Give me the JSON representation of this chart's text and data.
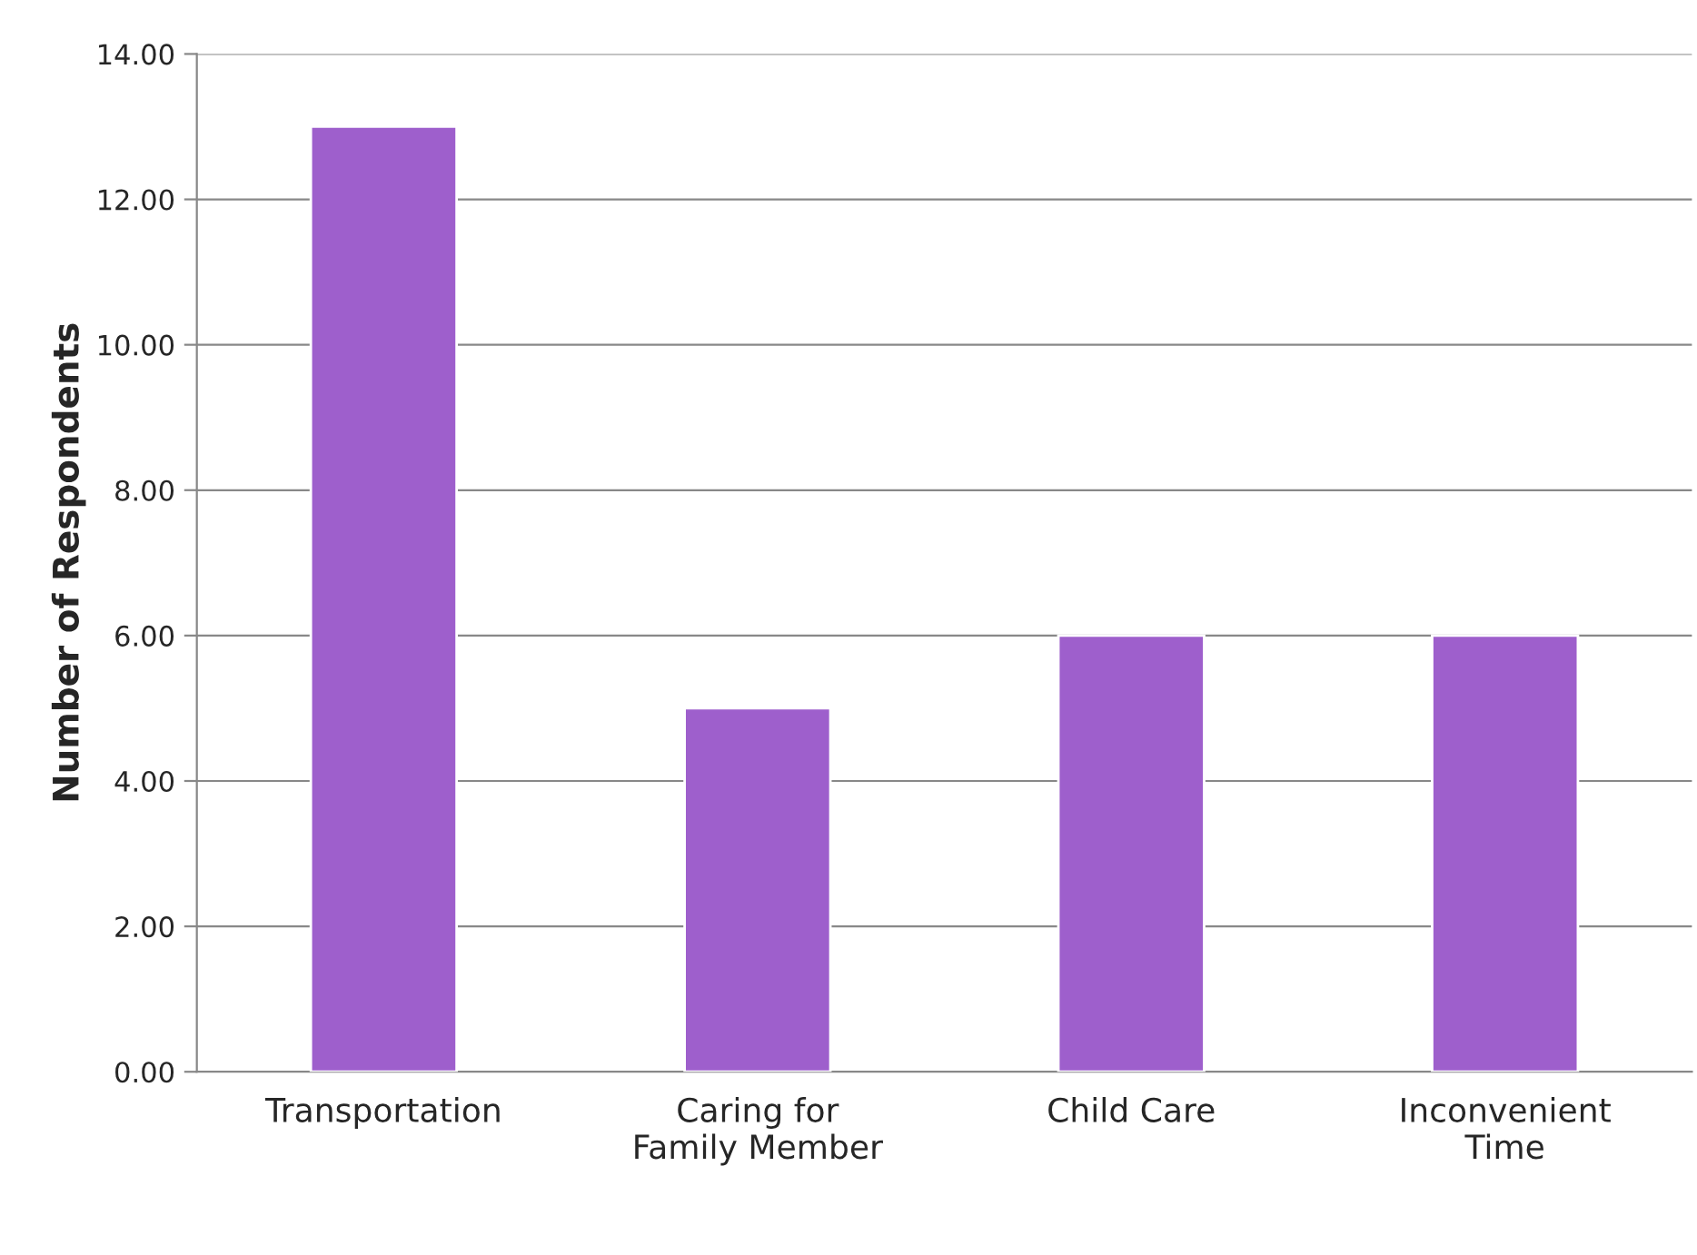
{
  "chart_data": {
    "type": "bar",
    "ylabel": "Number of Respondents",
    "categories": [
      "Transportation",
      "Caring for\nFamily Member",
      "Child Care",
      "Inconvenient\nTime"
    ],
    "values": [
      13,
      5,
      6,
      6
    ],
    "color": "#9e5fcc",
    "ylim": [
      0,
      14
    ],
    "yticks": [
      {
        "value": 0,
        "label": "0.00"
      },
      {
        "value": 2,
        "label": "2.00"
      },
      {
        "value": 4,
        "label": "4.00"
      },
      {
        "value": 6,
        "label": "6.00"
      },
      {
        "value": 8,
        "label": "8.00"
      },
      {
        "value": 10,
        "label": "10.00"
      },
      {
        "value": 12,
        "label": "12.00"
      },
      {
        "value": 14,
        "label": "14.00"
      }
    ],
    "grid": "y",
    "legend": false
  }
}
